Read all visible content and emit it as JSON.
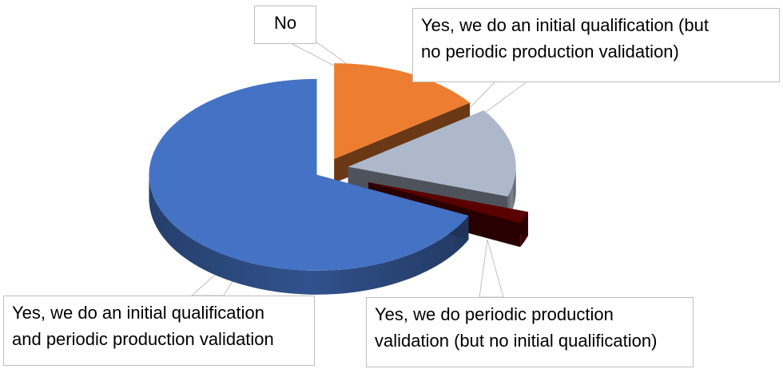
{
  "chart_data": {
    "type": "pie",
    "style": "3d-exploded",
    "legend": "none",
    "slices": [
      {
        "label": "No",
        "value": 15,
        "color": "#ED7D31"
      },
      {
        "label": "Yes, we do an initial qualification (but no periodic production validation)",
        "value": 15,
        "color": "#ADB9CA"
      },
      {
        "label": "Yes, we do periodic production validation (but no initial qualification)",
        "value": 2,
        "color": "#5B0000"
      },
      {
        "label": "Yes, we do an initial qualification and periodic production validation",
        "value": 68,
        "color": "#4472C4"
      }
    ]
  },
  "labels": {
    "no": [
      "No"
    ],
    "initial": [
      "Yes, we do an initial qualification (but",
      "no periodic production validation)"
    ],
    "periodic": [
      "Yes, we do periodic production",
      "validation (but no initial qualification)"
    ],
    "both": [
      "Yes, we do an initial qualification",
      "and periodic production validation"
    ]
  }
}
